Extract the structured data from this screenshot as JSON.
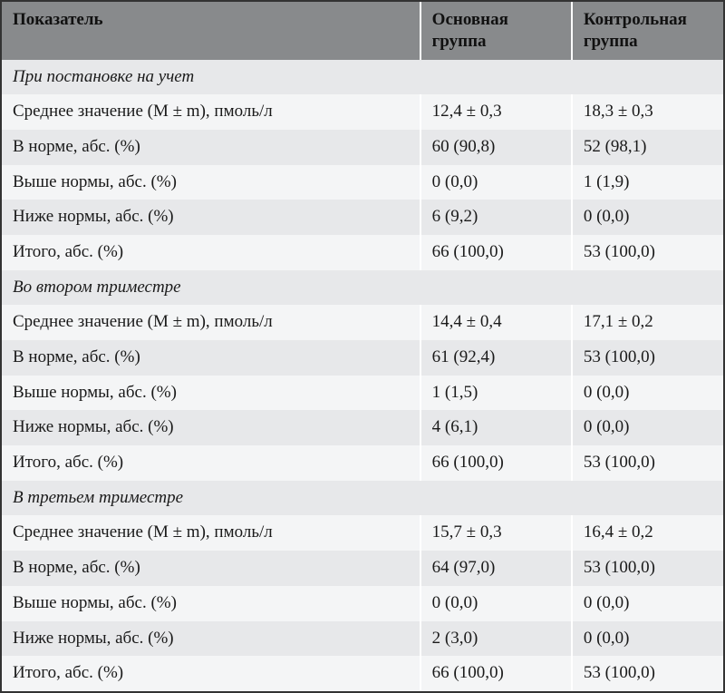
{
  "table": {
    "header_bg": "#888a8c",
    "row_even_bg": "#f4f5f6",
    "row_odd_bg": "#e7e8ea",
    "border_color": "#333333",
    "text_color": "#1a1a1a",
    "font_size_pt": 14,
    "columns": [
      {
        "label": "Показатель",
        "width_pct": 58
      },
      {
        "label": "Основная группа",
        "width_pct": 21
      },
      {
        "label": "Контрольная группа",
        "width_pct": 21
      }
    ],
    "sections": [
      {
        "title": "При постановке на учет",
        "rows": [
          {
            "label": "Среднее значение (M ± m), пмоль/л",
            "g1": "12,4 ± 0,3",
            "g2": "18,3 ± 0,3"
          },
          {
            "label": "В норме, абс. (%)",
            "g1": "60 (90,8)",
            "g2": "52 (98,1)"
          },
          {
            "label": "Выше нормы, абс. (%)",
            "g1": "0 (0,0)",
            "g2": "1 (1,9)"
          },
          {
            "label": "Ниже нормы, абс. (%)",
            "g1": "6 (9,2)",
            "g2": "0 (0,0)"
          },
          {
            "label": "Итого, абс. (%)",
            "g1": "66 (100,0)",
            "g2": "53 (100,0)"
          }
        ]
      },
      {
        "title": "Во втором триместре",
        "rows": [
          {
            "label": "Среднее значение (M ± m), пмоль/л",
            "g1": "14,4 ± 0,4",
            "g2": "17,1 ± 0,2"
          },
          {
            "label": "В норме, абс. (%)",
            "g1": "61 (92,4)",
            "g2": "53 (100,0)"
          },
          {
            "label": "Выше нормы, абс. (%)",
            "g1": "1 (1,5)",
            "g2": "0 (0,0)"
          },
          {
            "label": "Ниже нормы, абс. (%)",
            "g1": "4 (6,1)",
            "g2": "0 (0,0)"
          },
          {
            "label": "Итого, абс. (%)",
            "g1": "66 (100,0)",
            "g2": "53 (100,0)"
          }
        ]
      },
      {
        "title": "В третьем триместре",
        "rows": [
          {
            "label": "Среднее значение (M ± m), пмоль/л",
            "g1": "15,7 ± 0,3",
            "g2": "16,4 ± 0,2"
          },
          {
            "label": "В норме, абс. (%)",
            "g1": "64 (97,0)",
            "g2": "53 (100,0)"
          },
          {
            "label": "Выше нормы, абс. (%)",
            "g1": "0 (0,0)",
            "g2": "0 (0,0)"
          },
          {
            "label": "Ниже нормы, абс. (%)",
            "g1": "2 (3,0)",
            "g2": "0 (0,0)"
          },
          {
            "label": "Итого, абс. (%)",
            "g1": "66 (100,0)",
            "g2": "53 (100,0)"
          }
        ]
      }
    ]
  }
}
